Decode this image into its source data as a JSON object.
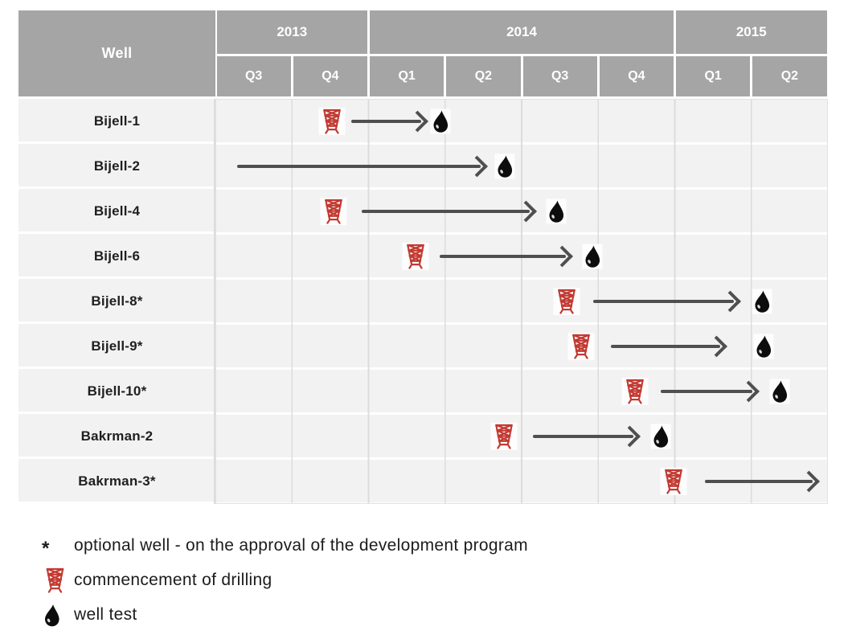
{
  "colors": {
    "header_bg": "#a5a5a5",
    "header_text": "#ffffff",
    "cell_bg": "#f2f2f2",
    "grid_line": "#dcdcdc",
    "row_separator": "#ffffff",
    "arrow": "#4f4f4f",
    "rig_red": "#c23a32",
    "drop_black": "#0d0d0d",
    "label_text": "#1f1f1f"
  },
  "table": {
    "well_header": "Well",
    "years": [
      {
        "label": "2013",
        "span": 2
      },
      {
        "label": "2014",
        "span": 4
      },
      {
        "label": "2015",
        "span": 2
      }
    ],
    "quarter_labels": [
      "Q3",
      "Q4",
      "Q1",
      "Q2",
      "Q3",
      "Q4",
      "Q1",
      "Q2"
    ]
  },
  "legend": {
    "asterisk_symbol": "*",
    "asterisk_text": "optional well - on the approval of the development program",
    "rig_text": "commencement of drilling",
    "drop_text": "well test"
  },
  "chart_data": {
    "type": "table",
    "title": "",
    "timeline": [
      "2013 Q3",
      "2013 Q4",
      "2014 Q1",
      "2014 Q2",
      "2014 Q3",
      "2014 Q4",
      "2015 Q1",
      "2015 Q2"
    ],
    "legend_meaning": {
      "rig": "commencement of drilling",
      "drop": "well test",
      "asterisk": "optional well - on the approval of the development program"
    },
    "rows": [
      {
        "well": "Bijell-1",
        "optional": false,
        "drilling_start": "2013 Q4",
        "well_test": "2014 Q1",
        "rig_pct": 19.0,
        "arrow_start_pct": 22.2,
        "arrow_end_pct": 34.8,
        "drop_pct": 36.7
      },
      {
        "well": "Bijell-2",
        "optional": false,
        "drilling_start": null,
        "well_test": "2014 Q2",
        "rig_pct": null,
        "arrow_start_pct": 3.5,
        "arrow_end_pct": 44.5,
        "drop_pct": 47.2
      },
      {
        "well": "Bijell-4",
        "optional": false,
        "drilling_start": "2013 Q4",
        "well_test": "2014 Q3",
        "rig_pct": 19.3,
        "arrow_start_pct": 23.9,
        "arrow_end_pct": 52.5,
        "drop_pct": 55.6
      },
      {
        "well": "Bijell-6",
        "optional": false,
        "drilling_start": "2014 Q1",
        "well_test": "2014 Q3",
        "rig_pct": 32.7,
        "arrow_start_pct": 36.6,
        "arrow_end_pct": 58.4,
        "drop_pct": 61.5
      },
      {
        "well": "Bijell-8*",
        "optional": true,
        "drilling_start": "2014 Q3",
        "well_test": "2015 Q2",
        "rig_pct": 57.3,
        "arrow_start_pct": 61.7,
        "arrow_end_pct": 85.8,
        "drop_pct": 89.2
      },
      {
        "well": "Bijell-9*",
        "optional": true,
        "drilling_start": "2014 Q3",
        "well_test": "2015 Q2",
        "rig_pct": 59.7,
        "arrow_start_pct": 64.6,
        "arrow_end_pct": 83.6,
        "drop_pct": 89.5
      },
      {
        "well": "Bijell-10*",
        "optional": true,
        "drilling_start": "2014 Q4",
        "well_test": "2015 Q2",
        "rig_pct": 68.5,
        "arrow_start_pct": 72.7,
        "arrow_end_pct": 88.8,
        "drop_pct": 92.1
      },
      {
        "well": "Bakrman-2",
        "optional": false,
        "drilling_start": "2014 Q2",
        "well_test": "2014 Q4",
        "rig_pct": 47.1,
        "arrow_start_pct": 51.8,
        "arrow_end_pct": 69.4,
        "drop_pct": 72.7
      },
      {
        "well": "Bakrman-3*",
        "optional": true,
        "drilling_start": "2014 Q4",
        "well_test": null,
        "rig_pct": 74.8,
        "arrow_start_pct": 79.9,
        "arrow_end_pct": 98.7,
        "drop_pct": null
      }
    ]
  }
}
